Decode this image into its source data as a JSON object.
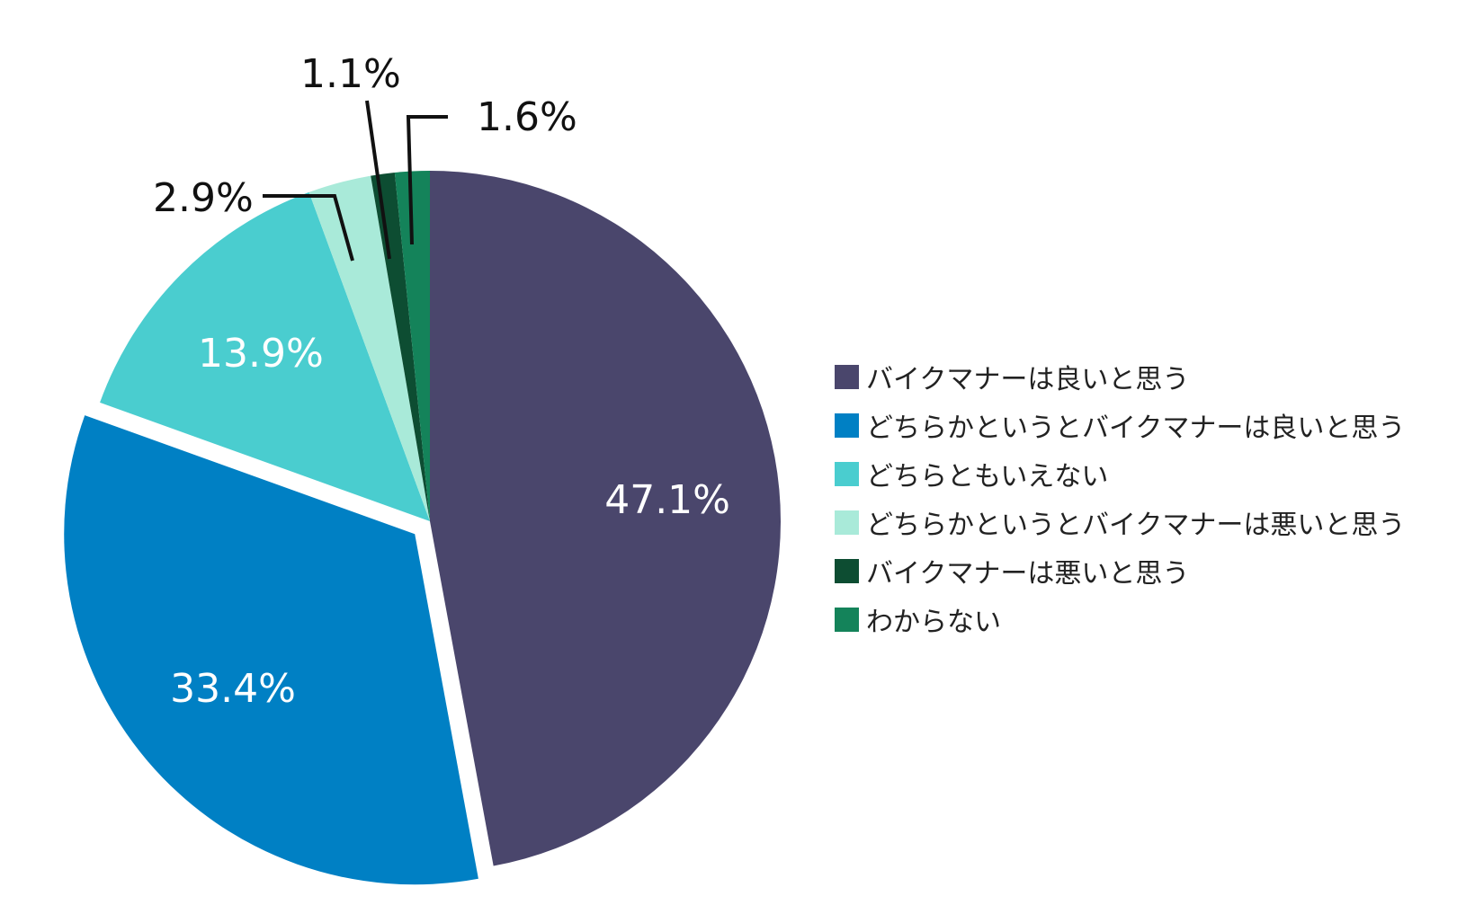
{
  "chart_data": {
    "type": "pie",
    "title": "",
    "unit": "%",
    "start": "12 o'clock, clockwise",
    "slices": [
      {
        "name": "バイクマナーは良いと思う",
        "value": 47.1,
        "label": "47.1%",
        "color": "#4a466c",
        "label_placement": "inside"
      },
      {
        "name": "どちらかというとバイクマナーは良いと思う",
        "value": 33.4,
        "label": "33.4%",
        "color": "#0080c4",
        "label_placement": "inside",
        "exploded": true
      },
      {
        "name": "どちらともいえない",
        "value": 13.9,
        "label": "13.9%",
        "color": "#4acdcf",
        "label_placement": "inside"
      },
      {
        "name": "どちらかというとバイクマナーは悪いと思う",
        "value": 2.9,
        "label": "2.9%",
        "color": "#a9ead9",
        "label_placement": "outside"
      },
      {
        "name": "バイクマナーは悪いと思う",
        "value": 1.1,
        "label": "1.1%",
        "color": "#0d4d32",
        "label_placement": "outside"
      },
      {
        "name": "わからない",
        "value": 1.6,
        "label": "1.6%",
        "color": "#14835a",
        "label_placement": "outside"
      }
    ],
    "legend_position": "right"
  }
}
